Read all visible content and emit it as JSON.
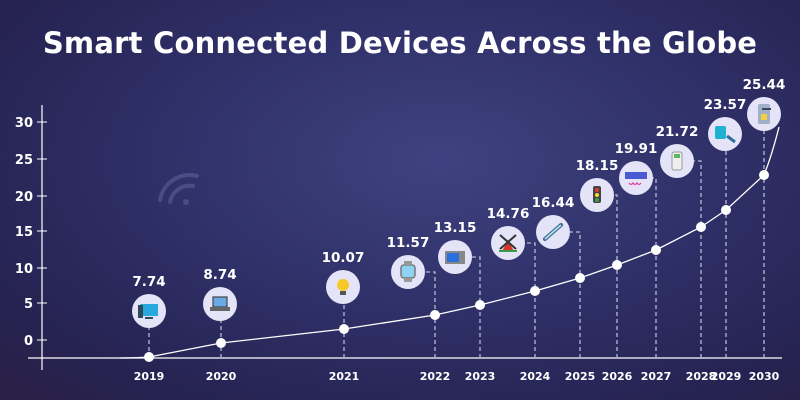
{
  "chart_data": {
    "type": "line",
    "title": "Smart Connected Devices Across the Globe",
    "xlabel": "",
    "ylabel": "",
    "ylim": [
      0,
      30
    ],
    "yticks": [
      "30",
      "25",
      "20",
      "15",
      "10",
      "5",
      "0"
    ],
    "categories": [
      "2019",
      "2020",
      "2021",
      "2022",
      "2023",
      "2024",
      "2025",
      "2026",
      "2027",
      "2028",
      "2029",
      "2030"
    ],
    "values": [
      7.74,
      8.74,
      10.07,
      11.57,
      13.15,
      14.76,
      16.44,
      18.15,
      19.91,
      21.72,
      23.57,
      25.44
    ],
    "value_labels": [
      "7.74",
      "8.74",
      "10.07",
      "11.57",
      "13.15",
      "14.76",
      "16.44",
      "18.15",
      "19.91",
      "21.72",
      "23.57",
      "25.44"
    ],
    "icons": [
      "desktop-computer-icon",
      "laptop-icon",
      "light-bulb-icon",
      "smartwatch-icon",
      "microwave-icon",
      "windmill-icon",
      "chain-link-icon",
      "traffic-light-icon",
      "air-conditioner-icon",
      "remote-control-icon",
      "smart-plug-icon",
      "smart-lock-icon"
    ],
    "grid": false,
    "legend": "none",
    "colors": {
      "background": "#2f3068",
      "line": "#ffffff",
      "icon_circle": "#e4e3f7"
    }
  }
}
